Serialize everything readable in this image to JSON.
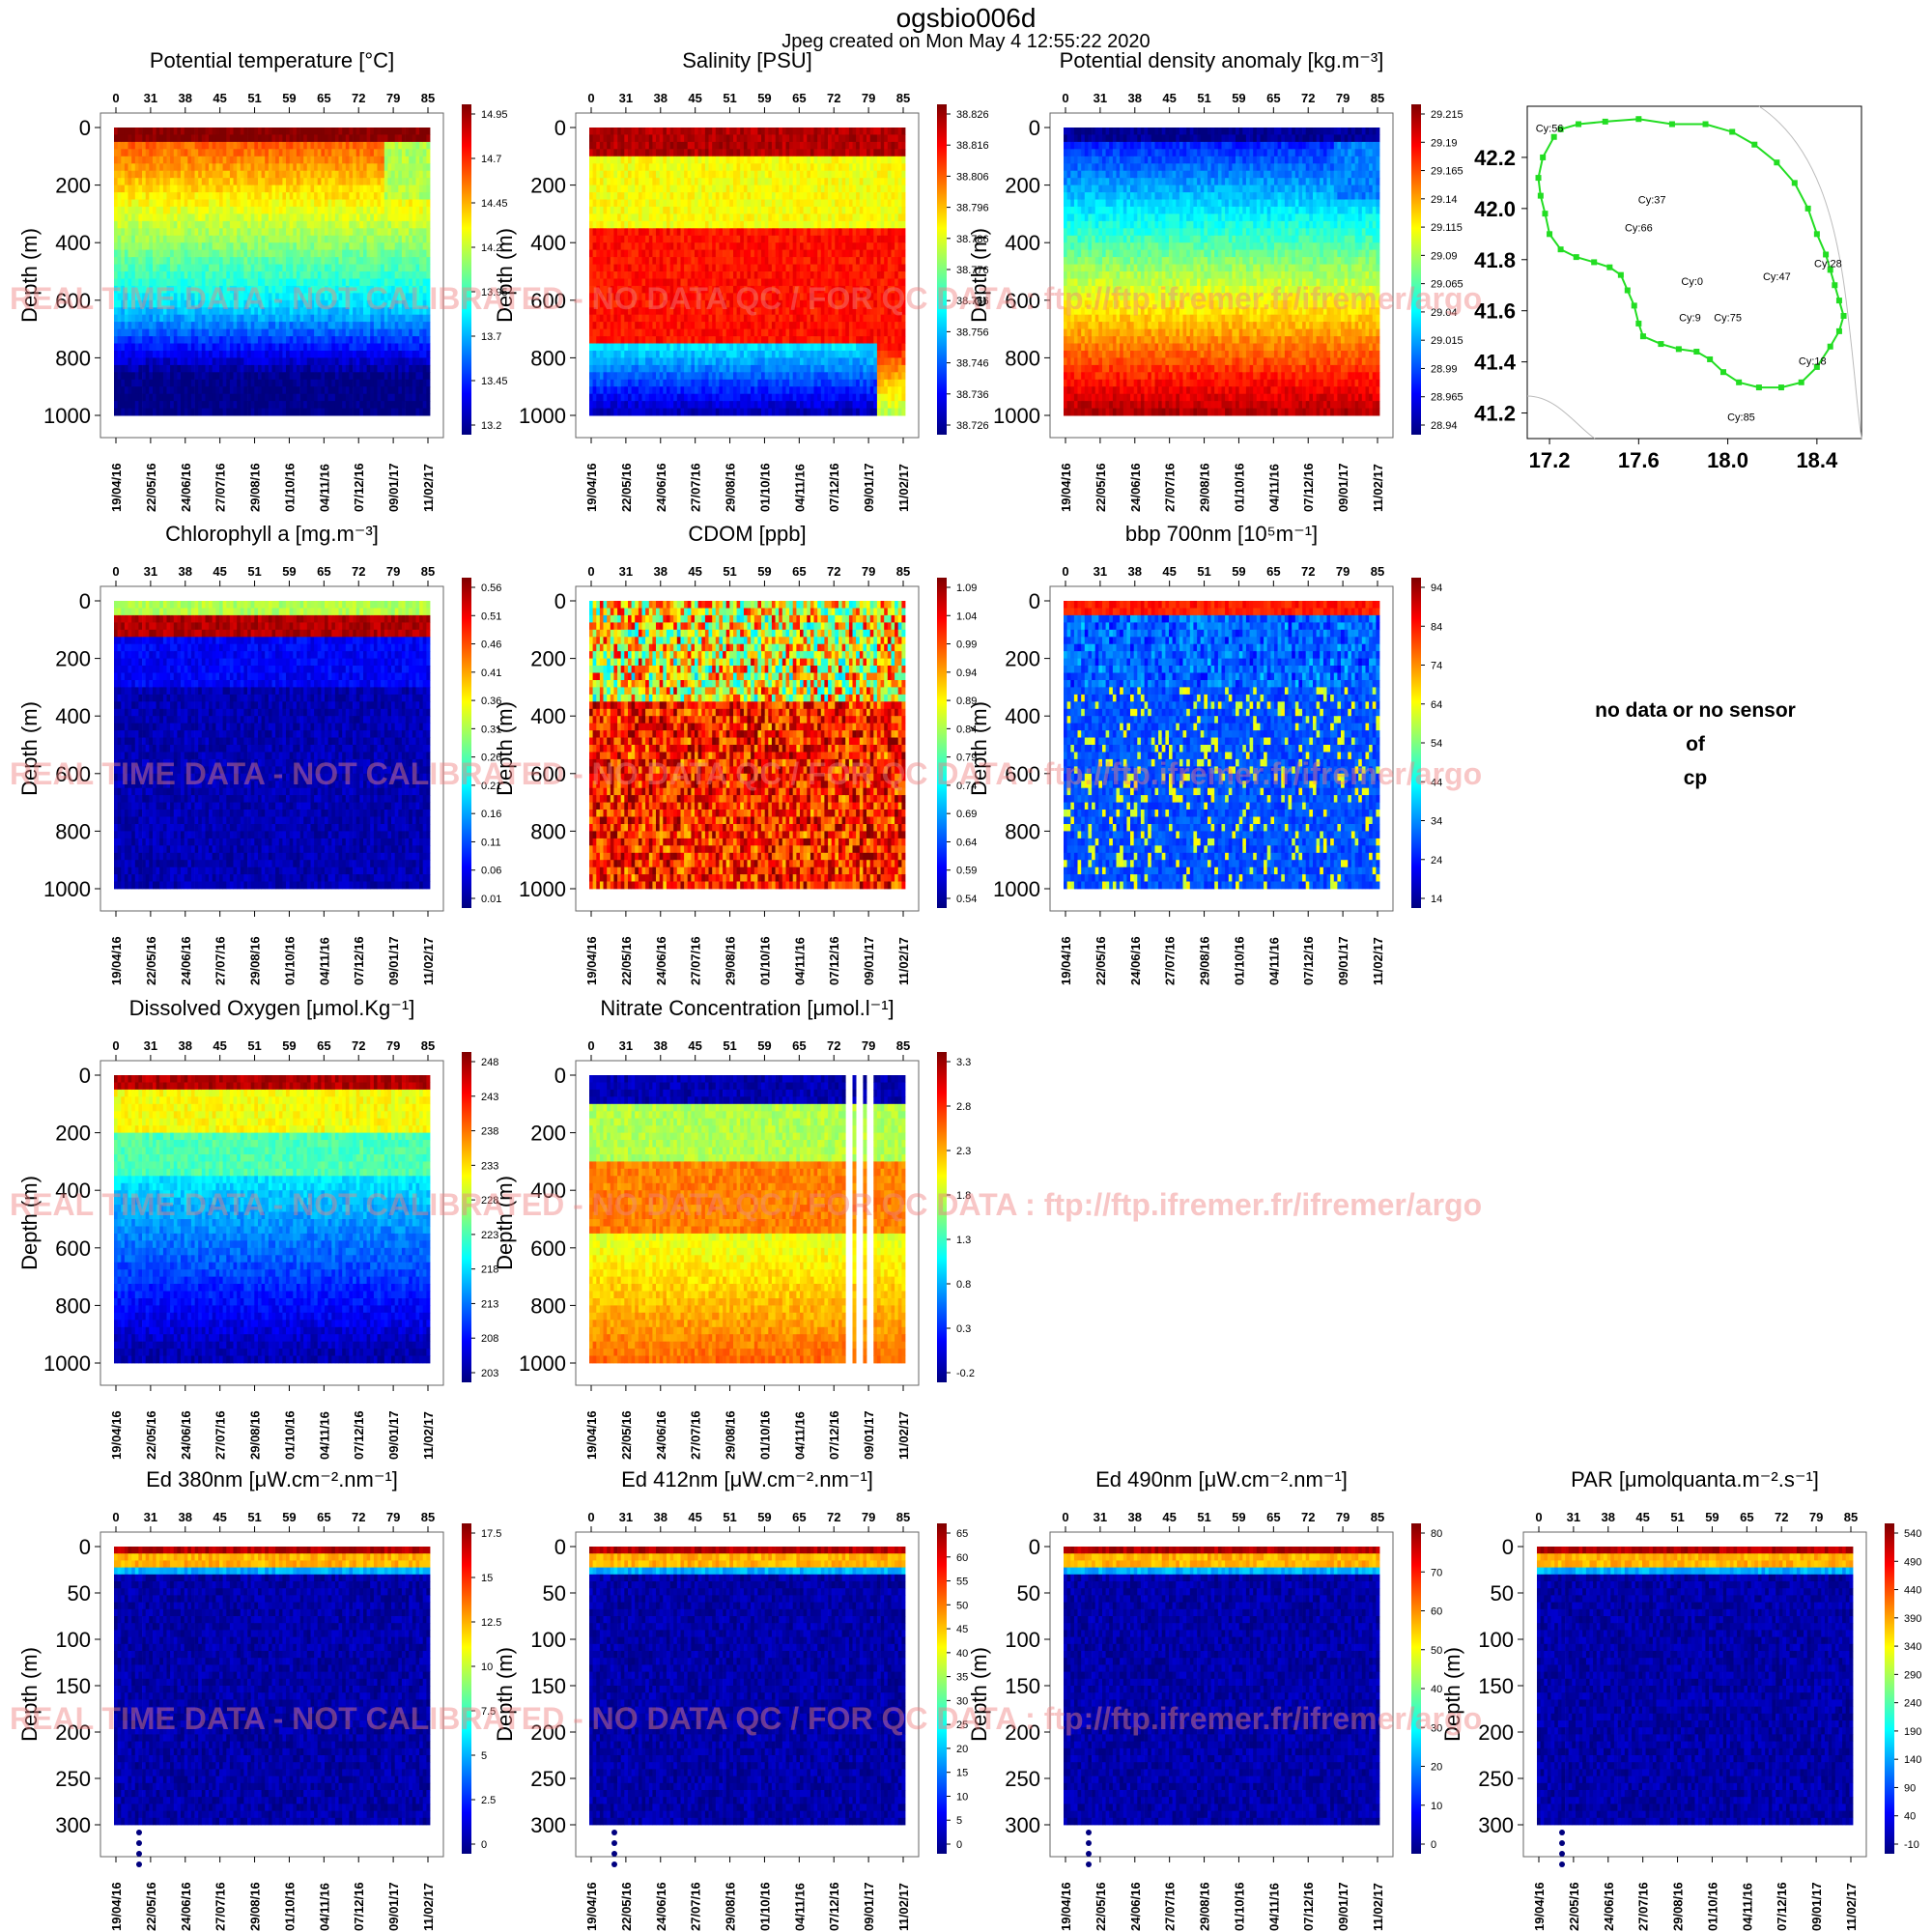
{
  "header": {
    "title": "ogsbio006d",
    "subtitle": "Jpeg created on  Mon May  4 12:55:22 2020"
  },
  "watermark": "REAL TIME DATA - NOT CALIBRATED - NO DATA QC / FOR QC DATA : ftp://ftp.ifremer.fr/ifremer/argo",
  "no_data_text": [
    "no data or no sensor",
    "of",
    "cp"
  ],
  "colormap": [
    "#00007f",
    "#0000ff",
    "#007fff",
    "#00ffff",
    "#7fff7f",
    "#ffff00",
    "#ff7f00",
    "#ff0000",
    "#7f0000"
  ],
  "common": {
    "cycle_ticks": [
      "0",
      "31",
      "38",
      "45",
      "51",
      "59",
      "65",
      "72",
      "79",
      "85"
    ],
    "date_ticks": [
      "19/04/16",
      "22/05/16",
      "24/06/16",
      "27/07/16",
      "29/08/16",
      "01/10/16",
      "04/11/16",
      "07/12/16",
      "09/01/17",
      "11/02/17"
    ],
    "depth_label": "Depth (m)",
    "deep_ticks": [
      "0",
      "200",
      "400",
      "600",
      "800",
      "1000"
    ],
    "shallow_ticks": [
      "0",
      "50",
      "100",
      "150",
      "200",
      "250",
      "300"
    ]
  },
  "chart_data": [
    {
      "type": "heatmap",
      "id": "temp",
      "title": "Potential temperature [°C]",
      "xlabel": "",
      "ylabel": "Depth (m)",
      "ylim": [
        1000,
        0
      ],
      "colorbar": [
        "14.95",
        "14.7",
        "14.45",
        "14.2",
        "13.95",
        "13.7",
        "13.45",
        "13.2"
      ]
    },
    {
      "type": "heatmap",
      "id": "sal",
      "title": "Salinity [PSU]",
      "xlabel": "",
      "ylabel": "Depth (m)",
      "ylim": [
        1000,
        0
      ],
      "colorbar": [
        "38.826",
        "38.816",
        "38.806",
        "38.796",
        "38.786",
        "38.776",
        "38.766",
        "38.756",
        "38.746",
        "38.736",
        "38.726"
      ]
    },
    {
      "type": "heatmap",
      "id": "dens",
      "title": "Potential density anomaly [kg.m⁻³]",
      "xlabel": "",
      "ylabel": "Depth (m)",
      "ylim": [
        1000,
        0
      ],
      "colorbar": [
        "29.215",
        "29.19",
        "29.165",
        "29.14",
        "29.115",
        "29.09",
        "29.065",
        "29.04",
        "29.015",
        "28.99",
        "28.965",
        "28.94"
      ]
    },
    {
      "type": "scatter",
      "id": "map",
      "title": "",
      "xlim": [
        17.1,
        18.6
      ],
      "ylim": [
        41.1,
        42.4
      ],
      "x_ticks": [
        "17.2",
        "17.6",
        "18.0",
        "18.4"
      ],
      "y_ticks": [
        "42.2",
        "42.0",
        "41.8",
        "41.6",
        "41.4",
        "41.2"
      ],
      "labels": [
        {
          "text": "Cy:56",
          "lon": 17.2,
          "lat": 42.3
        },
        {
          "text": "Cy:37",
          "lon": 17.66,
          "lat": 42.02
        },
        {
          "text": "Cy:66",
          "lon": 17.6,
          "lat": 41.91
        },
        {
          "text": "Cy:0",
          "lon": 17.84,
          "lat": 41.7
        },
        {
          "text": "Cy:47",
          "lon": 18.22,
          "lat": 41.72
        },
        {
          "text": "Cy:28",
          "lon": 18.45,
          "lat": 41.77
        },
        {
          "text": "Cy:9",
          "lon": 17.83,
          "lat": 41.56
        },
        {
          "text": "Cy:75",
          "lon": 18.0,
          "lat": 41.56
        },
        {
          "text": "Cy:18",
          "lon": 18.38,
          "lat": 41.39
        },
        {
          "text": "Cy:85",
          "lon": 18.06,
          "lat": 41.17
        }
      ],
      "track": [
        [
          17.25,
          42.31
        ],
        [
          17.33,
          42.33
        ],
        [
          17.45,
          42.34
        ],
        [
          17.6,
          42.35
        ],
        [
          17.75,
          42.33
        ],
        [
          17.9,
          42.33
        ],
        [
          18.02,
          42.3
        ],
        [
          18.12,
          42.25
        ],
        [
          18.22,
          42.18
        ],
        [
          18.3,
          42.1
        ],
        [
          18.36,
          42.0
        ],
        [
          18.4,
          41.9
        ],
        [
          18.44,
          41.82
        ],
        [
          18.46,
          41.76
        ],
        [
          18.48,
          41.7
        ],
        [
          18.5,
          41.64
        ],
        [
          18.52,
          41.58
        ],
        [
          18.5,
          41.52
        ],
        [
          18.46,
          41.46
        ],
        [
          18.4,
          41.38
        ],
        [
          18.33,
          41.32
        ],
        [
          18.24,
          41.3
        ],
        [
          18.14,
          41.3
        ],
        [
          18.05,
          41.32
        ],
        [
          17.98,
          41.36
        ],
        [
          17.92,
          41.41
        ],
        [
          17.86,
          41.44
        ],
        [
          17.78,
          41.45
        ],
        [
          17.7,
          41.47
        ],
        [
          17.62,
          41.5
        ],
        [
          17.6,
          41.55
        ],
        [
          17.58,
          41.62
        ],
        [
          17.55,
          41.68
        ],
        [
          17.52,
          41.74
        ],
        [
          17.47,
          41.77
        ],
        [
          17.4,
          41.79
        ],
        [
          17.32,
          41.81
        ],
        [
          17.25,
          41.84
        ],
        [
          17.2,
          41.9
        ],
        [
          17.18,
          41.98
        ],
        [
          17.16,
          42.05
        ],
        [
          17.15,
          42.12
        ],
        [
          17.17,
          42.2
        ],
        [
          17.22,
          42.28
        ]
      ]
    },
    {
      "type": "heatmap",
      "id": "chl",
      "title": "Chlorophyll a [mg.m⁻³]",
      "xlabel": "",
      "ylabel": "Depth (m)",
      "ylim": [
        1000,
        0
      ],
      "colorbar": [
        "0.56",
        "0.51",
        "0.46",
        "0.41",
        "0.36",
        "0.31",
        "0.26",
        "0.21",
        "0.16",
        "0.11",
        "0.06",
        "0.01"
      ]
    },
    {
      "type": "heatmap",
      "id": "cdom",
      "title": "CDOM  [ppb]",
      "xlabel": "",
      "ylabel": "Depth (m)",
      "ylim": [
        1000,
        0
      ],
      "colorbar": [
        "1.09",
        "1.04",
        "0.99",
        "0.94",
        "0.89",
        "0.84",
        "0.79",
        "0.74",
        "0.69",
        "0.64",
        "0.59",
        "0.54"
      ]
    },
    {
      "type": "heatmap",
      "id": "bbp",
      "title": "bbp 700nm [10⁵m⁻¹]",
      "xlabel": "",
      "ylabel": "Depth (m)",
      "ylim": [
        1000,
        0
      ],
      "colorbar": [
        "94",
        "84",
        "74",
        "64",
        "54",
        "44",
        "34",
        "24",
        "14"
      ]
    },
    {
      "type": "heatmap",
      "id": "oxy",
      "title": "Dissolved Oxygen [μmol.Kg⁻¹]",
      "xlabel": "",
      "ylabel": "Depth (m)",
      "ylim": [
        1000,
        0
      ],
      "colorbar": [
        "248",
        "243",
        "238",
        "233",
        "228",
        "223",
        "218",
        "213",
        "208",
        "203"
      ]
    },
    {
      "type": "heatmap",
      "id": "no3",
      "title": "Nitrate Concentration [μmol.l⁻¹]",
      "xlabel": "",
      "ylabel": "Depth (m)",
      "ylim": [
        1000,
        0
      ],
      "colorbar": [
        "3.3",
        "2.8",
        "2.3",
        "1.8",
        "1.3",
        "0.8",
        "0.3",
        "-0.2"
      ]
    },
    {
      "type": "heatmap",
      "id": "ed380",
      "title": "Ed 380nm [μW.cm⁻².nm⁻¹]",
      "xlabel": "",
      "ylabel": "Depth (m)",
      "ylim": [
        300,
        0
      ],
      "colorbar": [
        "17.5",
        "15",
        "12.5",
        "10",
        "7.5",
        "5",
        "2.5",
        "0"
      ]
    },
    {
      "type": "heatmap",
      "id": "ed412",
      "title": "Ed 412nm [μW.cm⁻².nm⁻¹]",
      "xlabel": "",
      "ylabel": "Depth (m)",
      "ylim": [
        300,
        0
      ],
      "colorbar": [
        "65",
        "60",
        "55",
        "50",
        "45",
        "40",
        "35",
        "30",
        "25",
        "20",
        "15",
        "10",
        "5",
        "0"
      ]
    },
    {
      "type": "heatmap",
      "id": "ed490",
      "title": "Ed 490nm [μW.cm⁻².nm⁻¹]",
      "xlabel": "",
      "ylabel": "Depth (m)",
      "ylim": [
        300,
        0
      ],
      "colorbar": [
        "80",
        "70",
        "60",
        "50",
        "40",
        "30",
        "20",
        "10",
        "0"
      ]
    },
    {
      "type": "heatmap",
      "id": "par",
      "title": "PAR [μmolquanta.m⁻².s⁻¹]",
      "xlabel": "",
      "ylabel": "Depth (m)",
      "ylim": [
        300,
        0
      ],
      "colorbar": [
        "540",
        "490",
        "440",
        "390",
        "340",
        "290",
        "240",
        "190",
        "140",
        "90",
        "40",
        "-10"
      ]
    }
  ]
}
